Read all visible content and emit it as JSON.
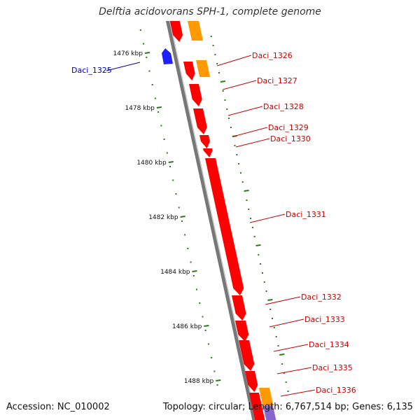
{
  "title": "Delftia acidovorans SPH-1, complete genome",
  "accession_text": "Accession: NC_010002",
  "summary_text": "Topology: circular; Length: 6,767,514 bp; Genes: 6,135",
  "colors": {
    "backbone": "#8c8c8c",
    "forward_gene": "#ff0000",
    "reverse_gene": "#1f1fff",
    "rna_gene": "#ff9900",
    "other_feature": "#66cc66",
    "purple_feature": "#8866cc",
    "tick": "#2a7a1a",
    "label_forward": "#cc0000",
    "label_reverse": "#0000aa"
  },
  "scale_ticks": [
    {
      "label": "1476 kbp"
    },
    {
      "label": "1478 kbp"
    },
    {
      "label": "1480 kbp"
    },
    {
      "label": "1482 kbp"
    },
    {
      "label": "1484 kbp"
    },
    {
      "label": "1486 kbp"
    },
    {
      "label": "1488 kbp"
    }
  ],
  "genes": [
    {
      "name": "Daci_1325",
      "strand": "reverse"
    },
    {
      "name": "Daci_1326",
      "strand": "forward"
    },
    {
      "name": "Daci_1327",
      "strand": "forward"
    },
    {
      "name": "Daci_1328",
      "strand": "forward"
    },
    {
      "name": "Daci_1329",
      "strand": "forward"
    },
    {
      "name": "Daci_1330",
      "strand": "forward"
    },
    {
      "name": "Daci_1331",
      "strand": "forward"
    },
    {
      "name": "Daci_1332",
      "strand": "forward"
    },
    {
      "name": "Daci_1333",
      "strand": "forward"
    },
    {
      "name": "Daci_1334",
      "strand": "forward"
    },
    {
      "name": "Daci_1335",
      "strand": "forward"
    },
    {
      "name": "Daci_1336",
      "strand": "forward"
    }
  ]
}
